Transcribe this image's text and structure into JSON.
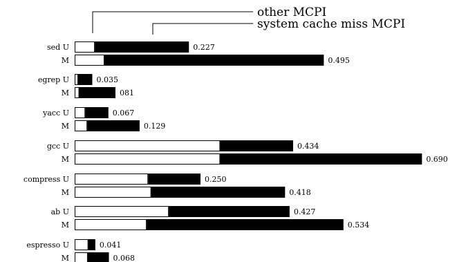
{
  "chart_data": {
    "type": "bar",
    "orientation": "horizontal",
    "stacked": true,
    "legend": [
      {
        "label": "other MCPI",
        "color": "#ffffff"
      },
      {
        "label": "system cache miss MCPI",
        "color": "#000000"
      }
    ],
    "groups": [
      {
        "name": "sed",
        "bars": [
          {
            "variant": "U",
            "other": 0.04,
            "miss": 0.187,
            "total_label": "0.227"
          },
          {
            "variant": "M",
            "other": 0.059,
            "miss": 0.436,
            "total_label": "0.495"
          }
        ]
      },
      {
        "name": "egrep",
        "bars": [
          {
            "variant": "U",
            "other": 0.007,
            "miss": 0.028,
            "total_label": "0.035"
          },
          {
            "variant": "M",
            "other": 0.009,
            "miss": 0.072,
            "total_label": "081"
          }
        ]
      },
      {
        "name": "yacc",
        "bars": [
          {
            "variant": "U",
            "other": 0.021,
            "miss": 0.046,
            "total_label": "0.067"
          },
          {
            "variant": "M",
            "other": 0.025,
            "miss": 0.104,
            "total_label": "0.129"
          }
        ]
      },
      {
        "name": "gcc",
        "bars": [
          {
            "variant": "U",
            "other": 0.289,
            "miss": 0.145,
            "total_label": "0.434"
          },
          {
            "variant": "M",
            "other": 0.289,
            "miss": 0.401,
            "total_label": "0.690"
          }
        ]
      },
      {
        "name": "compress",
        "bars": [
          {
            "variant": "U",
            "other": 0.146,
            "miss": 0.104,
            "total_label": "0.250"
          },
          {
            "variant": "M",
            "other": 0.152,
            "miss": 0.266,
            "total_label": "0.418"
          }
        ]
      },
      {
        "name": "ab",
        "bars": [
          {
            "variant": "U",
            "other": 0.187,
            "miss": 0.24,
            "total_label": "0.427"
          },
          {
            "variant": "M",
            "other": 0.143,
            "miss": 0.391,
            "total_label": "0.534"
          }
        ]
      },
      {
        "name": "espresso",
        "bars": [
          {
            "variant": "U",
            "other": 0.027,
            "miss": 0.014,
            "total_label": "0.041"
          },
          {
            "variant": "M",
            "other": 0.026,
            "miss": 0.042,
            "total_label": "0.068"
          }
        ]
      }
    ]
  }
}
